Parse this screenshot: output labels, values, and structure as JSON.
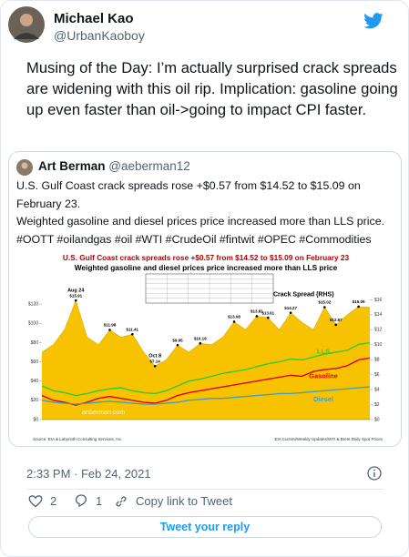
{
  "tweet": {
    "author": {
      "name": "Michael Kao",
      "handle": "@UrbanKaoboy"
    },
    "text_lines": [
      "Musing of the Day: I’m actually surprised crack spreads",
      "are widening with this oil rip. Implication: gasoline going",
      "up even faster than oil->going to impact CPI faster."
    ],
    "quoted": {
      "author": {
        "name": "Art Berman",
        "handle": "@aeberman12"
      },
      "text_lines": [
        "U.S. Gulf Coast crack spreads rose +$0.57 from $14.52 to $15.09 on",
        "February 23.",
        "Weighted gasoline and diesel prices price increased more than LLS price.",
        "#OOTT #oilandgas #oil #WTI #CrudeOil #fintwit #OPEC #Commodities"
      ]
    },
    "timestamp": "2:33 PM · Feb 24, 2021",
    "actions": {
      "likes": "2",
      "replies": "1",
      "share": "Copy link to Tweet"
    },
    "reply_button": "Tweet your reply"
  },
  "chart_data": {
    "type": "area_line",
    "title": "U.S. Gulf Coast crack spreads rose +$0.57 from $14.52 to $15.09 on February 23",
    "subtitle": "Weighted gasoline and diesel prices price increased more than LLS price",
    "watermark": "artberman.com",
    "source": "Source: EIA & Labyrinth Consulting Services, Inc.",
    "source_right": "EIA Current/Weekly Updates/WTI & Brent Daily Spot Prices",
    "annotations": [
      {
        "text": "Aug 24",
        "index": 3
      },
      {
        "text": "Oct 8",
        "index": 10
      }
    ],
    "categories": [
      null,
      null,
      null,
      null,
      null,
      null,
      null,
      null,
      null,
      null,
      null,
      null,
      null,
      null,
      null,
      null,
      null,
      null,
      null,
      null,
      null,
      null,
      null,
      null,
      null,
      null,
      null,
      null,
      null,
      null
    ],
    "ylim": [
      0,
      140
    ],
    "yticks": [
      {
        "value": 0,
        "label": "$0"
      },
      {
        "value": 20,
        "label": "$20"
      },
      {
        "value": 40,
        "label": "$40"
      },
      {
        "value": 60,
        "label": "$60"
      },
      {
        "value": 80,
        "label": "$80"
      },
      {
        "value": 100,
        "label": "$100"
      },
      {
        "value": 120,
        "label": "$120"
      }
    ],
    "y2lim": [
      0,
      18
    ],
    "y2ticks": [
      {
        "value": 0,
        "label": "$0"
      },
      {
        "value": 2,
        "label": "$2"
      },
      {
        "value": 4,
        "label": "$4"
      },
      {
        "value": 6,
        "label": "$6"
      },
      {
        "value": 8,
        "label": "$8"
      },
      {
        "value": 10,
        "label": "$10"
      },
      {
        "value": 12,
        "label": "$12"
      },
      {
        "value": 14,
        "label": "$14"
      },
      {
        "value": 16,
        "label": "$16"
      }
    ],
    "series": [
      {
        "name": "Crack Spread (RHS)",
        "color": "#f7c300",
        "axis": "y2",
        "fill": true,
        "values": [
          9,
          10,
          12,
          15.91,
          11,
          10,
          11.98,
          11,
          11.41,
          9,
          7.14,
          8,
          9.95,
          9,
          10.19,
          10,
          11,
          13.08,
          12,
          13.81,
          13.61,
          12,
          14.27,
          13,
          12,
          15.02,
          12.67,
          14,
          15.09,
          15
        ],
        "value_labels": [
          null,
          null,
          null,
          "$15.91",
          null,
          null,
          "$11.98",
          null,
          "$11.41",
          null,
          "$7.14",
          null,
          "$9.95",
          null,
          "$10.19",
          null,
          null,
          "$13.08",
          null,
          "$13.81",
          "$13.61",
          null,
          "$14.27",
          null,
          null,
          "$15.02",
          "$12.67",
          null,
          "$15.09",
          null
        ]
      },
      {
        "name": "LLS",
        "color": "#2ecc2e",
        "values": [
          35,
          30,
          28,
          25,
          27,
          30,
          32,
          33,
          30,
          28,
          27,
          30,
          35,
          40,
          42,
          45,
          48,
          50,
          52,
          55,
          58,
          60,
          63,
          62,
          65,
          68,
          70,
          72,
          78,
          80
        ]
      },
      {
        "name": "Gasoline",
        "color": "#e00000",
        "values": [
          25,
          20,
          18,
          15,
          18,
          22,
          24,
          22,
          20,
          18,
          17,
          20,
          25,
          28,
          30,
          32,
          34,
          36,
          38,
          40,
          42,
          44,
          46,
          45,
          50,
          52,
          53,
          56,
          62,
          64
        ]
      },
      {
        "name": "Diesel",
        "color": "#4a9fb5",
        "values": [
          20,
          18,
          17,
          16,
          17,
          18,
          19,
          18,
          17,
          16,
          16,
          17,
          18,
          20,
          21,
          22,
          22,
          23,
          24,
          25,
          26,
          27,
          27,
          28,
          29,
          30,
          31,
          32,
          33,
          34
        ]
      }
    ]
  }
}
